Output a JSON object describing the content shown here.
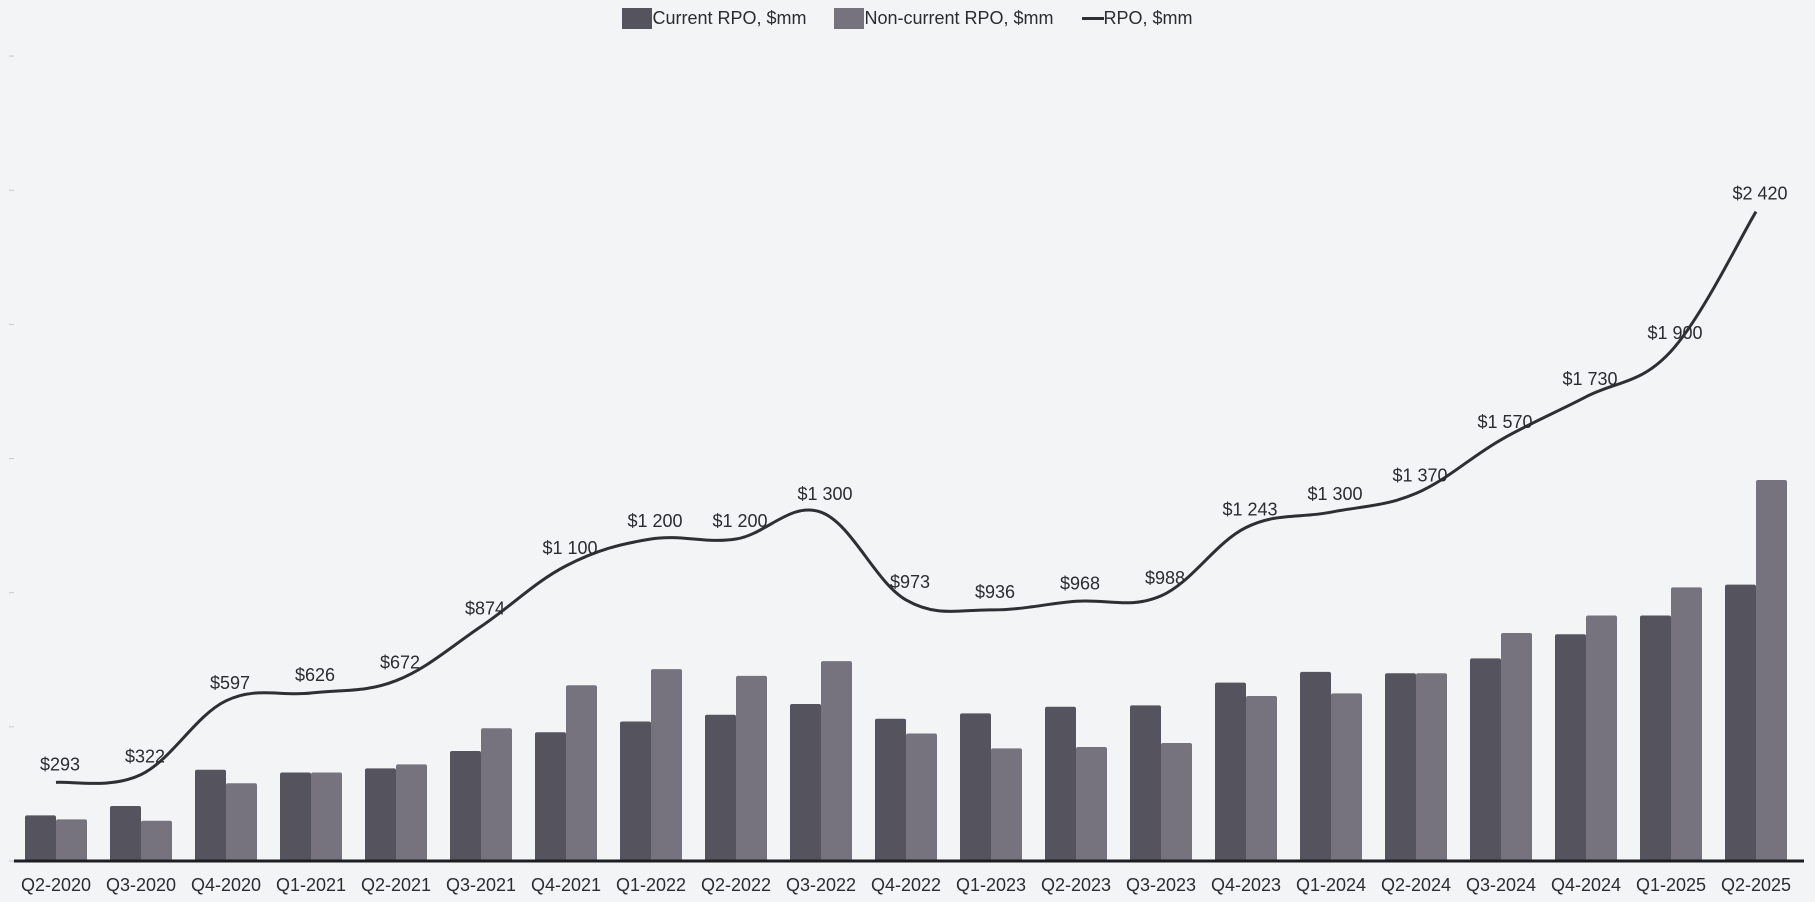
{
  "chart_data": {
    "type": "bar",
    "title": "",
    "xlabel": "",
    "ylabel": "",
    "ylim": [
      0,
      3000
    ],
    "grid": false,
    "legend_position": "top-center",
    "colors": {
      "current": "#55545e",
      "non_current": "#77737e",
      "line": "#2e2e33",
      "background": "#f3f4f6"
    },
    "categories": [
      "Q2-2020",
      "Q3-2020",
      "Q4-2020",
      "Q1-2021",
      "Q2-2021",
      "Q3-2021",
      "Q4-2021",
      "Q1-2022",
      "Q2-2022",
      "Q3-2022",
      "Q4-2022",
      "Q1-2023",
      "Q2-2023",
      "Q3-2023",
      "Q4-2023",
      "Q1-2024",
      "Q2-2024",
      "Q3-2024",
      "Q4-2024",
      "Q1-2025",
      "Q2-2025"
    ],
    "series": [
      {
        "name": "Current RPO, $mm",
        "type": "bar",
        "values": [
          170,
          205,
          340,
          330,
          345,
          410,
          480,
          520,
          545,
          585,
          530,
          550,
          575,
          580,
          665,
          705,
          700,
          755,
          845,
          915,
          1030
        ]
      },
      {
        "name": "Non-current RPO, $mm",
        "type": "bar",
        "values": [
          155,
          150,
          290,
          330,
          360,
          495,
          655,
          715,
          690,
          745,
          475,
          420,
          425,
          440,
          615,
          625,
          700,
          850,
          915,
          1020,
          1420
        ]
      },
      {
        "name": "RPO, $mm",
        "type": "line",
        "values": [
          293,
          322,
          597,
          626,
          672,
          874,
          1100,
          1200,
          1200,
          1300,
          973,
          936,
          968,
          988,
          1243,
          1300,
          1370,
          1570,
          1730,
          1900,
          2420
        ],
        "labels": [
          "$293",
          "$322",
          "$597",
          "$626",
          "$672",
          "$874",
          "$1 100",
          "$1 200",
          "$1 200",
          "$1 300",
          "$973",
          "$936",
          "$968",
          "$988",
          "$1 243",
          "$1 300",
          "$1 370",
          "$1 570",
          "$1 730",
          "$1 900",
          "$2 420"
        ]
      }
    ]
  }
}
